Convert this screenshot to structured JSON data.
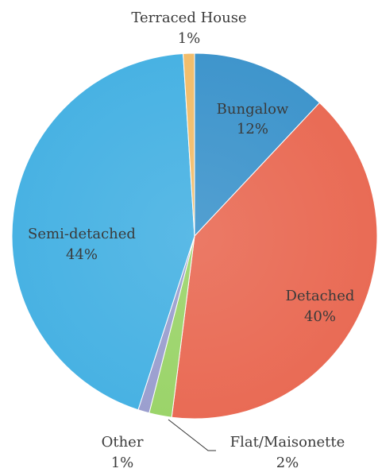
{
  "chart_data": {
    "type": "pie",
    "title": "",
    "slices": [
      {
        "label": "Bungalow",
        "value": 12,
        "display": "12%",
        "color": "#3f95cc"
      },
      {
        "label": "Detached",
        "value": 40,
        "display": "40%",
        "color": "#e96b55"
      },
      {
        "label": "Flat/Maisonette",
        "value": 2,
        "display": "2%",
        "color": "#9bd46a"
      },
      {
        "label": "Other",
        "value": 1,
        "display": "1%",
        "color": "#9b9fcf"
      },
      {
        "label": "Semi-detached",
        "value": 44,
        "display": "44%",
        "color": "#48b2e3"
      },
      {
        "label": "Terraced House",
        "value": 1,
        "display": "1%",
        "color": "#f2bd6b"
      }
    ],
    "start_angle_deg": 0,
    "direction": "clockwise",
    "legend": "none",
    "data_labels": "category name and percentage"
  }
}
